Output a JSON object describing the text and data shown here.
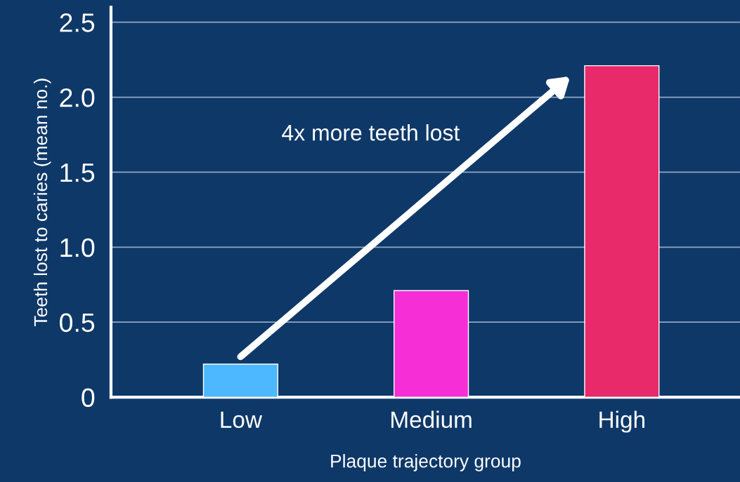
{
  "chart_data": {
    "type": "bar",
    "categories": [
      "Low",
      "Medium",
      "High"
    ],
    "values": [
      0.22,
      0.71,
      2.21
    ],
    "colors": [
      "#4db8ff",
      "#f52ed6",
      "#e8296a"
    ],
    "xlabel": "Plaque trajectory group",
    "ylabel": "Teeth lost to caries (mean no.)",
    "ylim": [
      0,
      2.6
    ],
    "yticks": [
      {
        "value": 0,
        "label": "0"
      },
      0.5,
      {
        "value": 1,
        "label": "1.0"
      },
      1.5,
      {
        "value": 2,
        "label": "2.0"
      },
      2.5
    ],
    "grid": "y",
    "annotations": [
      "4x more teeth lost"
    ]
  }
}
